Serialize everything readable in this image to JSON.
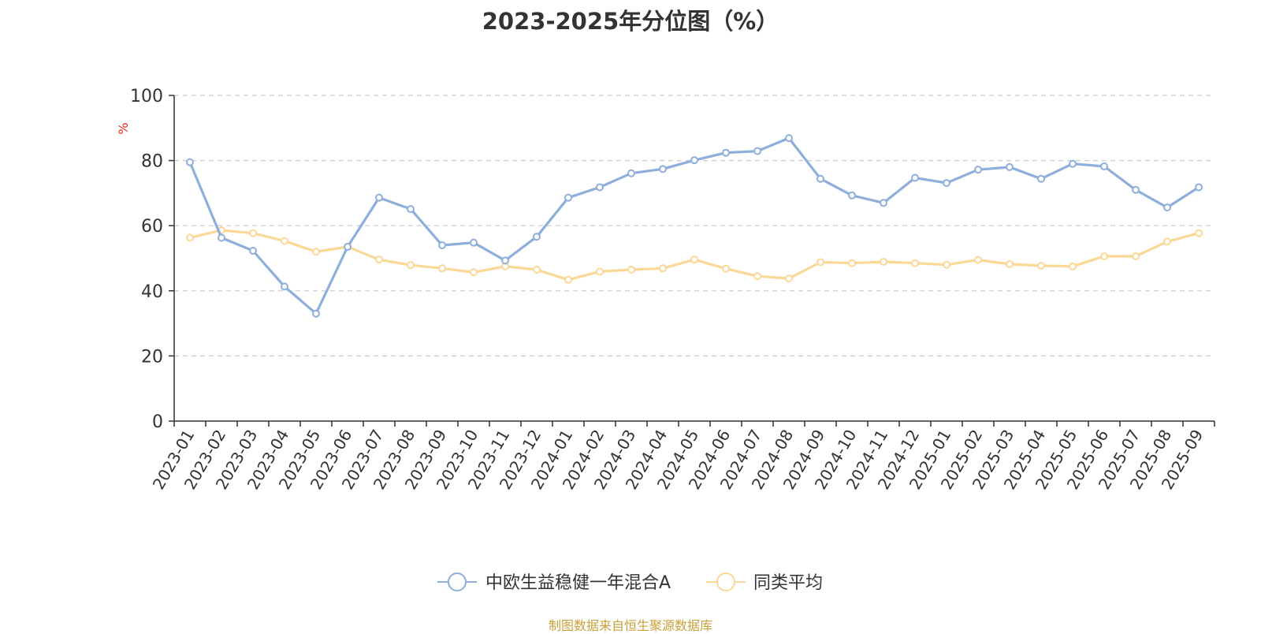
{
  "title": "2023-2025年分位图（%）",
  "footer": "制图数据来自恒生聚源数据库",
  "colors": {
    "series1": "#8eaedc",
    "series2": "#fbd896",
    "unit": "#e8261b",
    "grid": "#cccccc",
    "axis": "#333333"
  },
  "chart_data": {
    "type": "line",
    "title": "2023-2025年分位图（%）",
    "ylabel": "%",
    "ylim": [
      0,
      100
    ],
    "yticks": [
      0,
      20,
      40,
      60,
      80,
      100
    ],
    "grid": true,
    "legend_position": "bottom",
    "categories": [
      "2023-01",
      "2023-02",
      "2023-03",
      "2023-04",
      "2023-05",
      "2023-06",
      "2023-07",
      "2023-08",
      "2023-09",
      "2023-10",
      "2023-11",
      "2023-12",
      "2024-01",
      "2024-02",
      "2024-03",
      "2024-04",
      "2024-05",
      "2024-06",
      "2024-07",
      "2024-08",
      "2024-09",
      "2024-10",
      "2024-11",
      "2024-12",
      "2025-01",
      "2025-02",
      "2025-03",
      "2025-04",
      "2025-05",
      "2025-06",
      "2025-07",
      "2025-08",
      "2025-09"
    ],
    "series": [
      {
        "name": "中欧生益稳健一年混合A",
        "values": [
          79.5,
          56.3,
          52.3,
          41.3,
          33.0,
          53.5,
          68.6,
          65.1,
          54.0,
          54.8,
          49.3,
          56.6,
          68.6,
          71.8,
          76.1,
          77.4,
          80.1,
          82.4,
          82.9,
          86.9,
          74.4,
          69.3,
          67.0,
          74.7,
          73.1,
          77.2,
          78.0,
          74.4,
          79.0,
          78.2,
          71.0,
          65.6,
          71.8
        ]
      },
      {
        "name": "同类平均",
        "values": [
          56.3,
          58.6,
          57.7,
          55.3,
          52.0,
          53.5,
          49.6,
          47.9,
          46.9,
          45.7,
          47.5,
          46.5,
          43.4,
          45.9,
          46.5,
          46.9,
          49.6,
          46.8,
          44.5,
          43.8,
          48.8,
          48.5,
          48.9,
          48.5,
          48.0,
          49.5,
          48.2,
          47.7,
          47.5,
          50.6,
          50.6,
          55.1,
          57.7
        ]
      }
    ]
  }
}
